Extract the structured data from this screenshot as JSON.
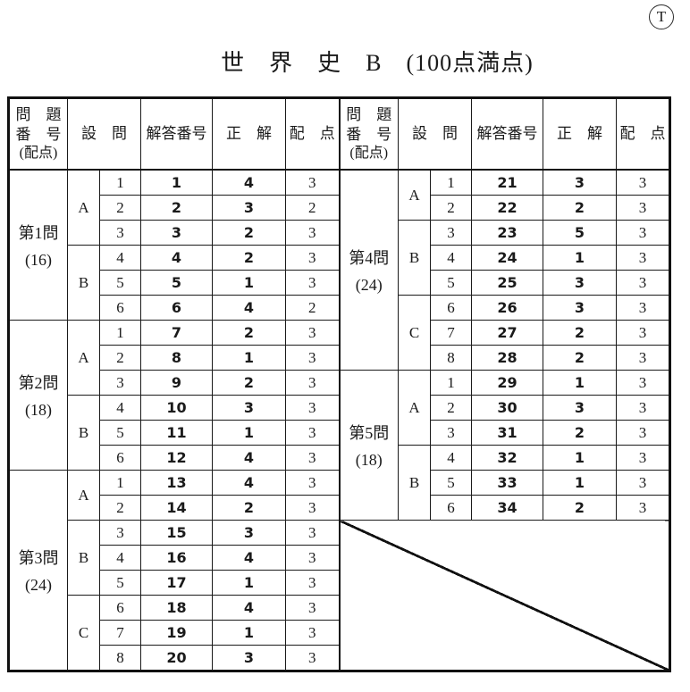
{
  "page": {
    "corner_mark": "T",
    "title": "世　界　史　B　(100点満点)"
  },
  "table": {
    "header": {
      "question_lines": [
        "問　題",
        "番　号",
        "(配点)"
      ],
      "setsumon": "設　問",
      "answer_no": "解答番号",
      "correct": "正　解",
      "points": "配　点"
    },
    "left_sections": [
      {
        "title": "第1問",
        "points_label": "(16)",
        "groups": [
          {
            "label": "A",
            "rows": [
              [
                1,
                1,
                4,
                3
              ],
              [
                2,
                2,
                3,
                2
              ],
              [
                3,
                3,
                2,
                3
              ]
            ]
          },
          {
            "label": "B",
            "rows": [
              [
                4,
                4,
                2,
                3
              ],
              [
                5,
                5,
                1,
                3
              ],
              [
                6,
                6,
                4,
                2
              ]
            ]
          }
        ]
      },
      {
        "title": "第2問",
        "points_label": "(18)",
        "groups": [
          {
            "label": "A",
            "rows": [
              [
                1,
                7,
                2,
                3
              ],
              [
                2,
                8,
                1,
                3
              ],
              [
                3,
                9,
                2,
                3
              ]
            ]
          },
          {
            "label": "B",
            "rows": [
              [
                4,
                10,
                3,
                3
              ],
              [
                5,
                11,
                1,
                3
              ],
              [
                6,
                12,
                4,
                3
              ]
            ]
          }
        ]
      },
      {
        "title": "第3問",
        "points_label": "(24)",
        "groups": [
          {
            "label": "A",
            "rows": [
              [
                1,
                13,
                4,
                3
              ],
              [
                2,
                14,
                2,
                3
              ]
            ]
          },
          {
            "label": "B",
            "rows": [
              [
                3,
                15,
                3,
                3
              ],
              [
                4,
                16,
                4,
                3
              ],
              [
                5,
                17,
                1,
                3
              ]
            ]
          },
          {
            "label": "C",
            "rows": [
              [
                6,
                18,
                4,
                3
              ],
              [
                7,
                19,
                1,
                3
              ],
              [
                8,
                20,
                3,
                3
              ]
            ]
          }
        ]
      }
    ],
    "right_sections": [
      {
        "title": "第4問",
        "points_label": "(24)",
        "groups": [
          {
            "label": "A",
            "rows": [
              [
                1,
                21,
                3,
                3
              ],
              [
                2,
                22,
                2,
                3
              ]
            ]
          },
          {
            "label": "B",
            "rows": [
              [
                3,
                23,
                5,
                3
              ],
              [
                4,
                24,
                1,
                3
              ],
              [
                5,
                25,
                3,
                3
              ]
            ]
          },
          {
            "label": "C",
            "rows": [
              [
                6,
                26,
                3,
                3
              ],
              [
                7,
                27,
                2,
                3
              ],
              [
                8,
                28,
                2,
                3
              ]
            ]
          }
        ]
      },
      {
        "title": "第5問",
        "points_label": "(18)",
        "groups": [
          {
            "label": "A",
            "rows": [
              [
                1,
                29,
                1,
                3
              ],
              [
                2,
                30,
                3,
                3
              ],
              [
                3,
                31,
                2,
                3
              ]
            ]
          },
          {
            "label": "B",
            "rows": [
              [
                4,
                32,
                1,
                3
              ],
              [
                5,
                33,
                1,
                3
              ],
              [
                6,
                34,
                2,
                3
              ]
            ]
          }
        ]
      }
    ]
  }
}
